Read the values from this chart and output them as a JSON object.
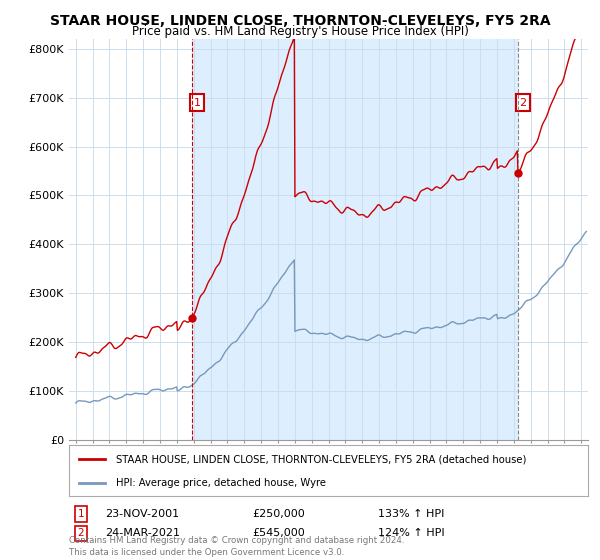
{
  "title": "STAAR HOUSE, LINDEN CLOSE, THORNTON-CLEVELEYS, FY5 2RA",
  "subtitle": "Price paid vs. HM Land Registry's House Price Index (HPI)",
  "ylabel_ticks": [
    "£0",
    "£100K",
    "£200K",
    "£300K",
    "£400K",
    "£500K",
    "£600K",
    "£700K",
    "£800K"
  ],
  "ytick_values": [
    0,
    100000,
    200000,
    300000,
    400000,
    500000,
    600000,
    700000,
    800000
  ],
  "ylim": [
    0,
    820000
  ],
  "xlim_left": 1994.6,
  "xlim_right": 2025.4,
  "sale1": {
    "date_num": 2001.9,
    "price": 250000,
    "label": "1"
  },
  "sale2": {
    "date_num": 2021.23,
    "price": 545000,
    "label": "2"
  },
  "legend_line1": "STAAR HOUSE, LINDEN CLOSE, THORNTON-CLEVELEYS, FY5 2RA (detached house)",
  "legend_line2": "HPI: Average price, detached house, Wyre",
  "footer": "Contains HM Land Registry data © Crown copyright and database right 2024.\nThis data is licensed under the Open Government Licence v3.0.",
  "line_color_red": "#cc0000",
  "line_color_blue": "#7799bb",
  "vline1_color": "#cc0000",
  "vline2_color": "#888888",
  "grid_color": "#ccddee",
  "bg_fill_color": "#ddeeff",
  "background_color": "#ffffff"
}
